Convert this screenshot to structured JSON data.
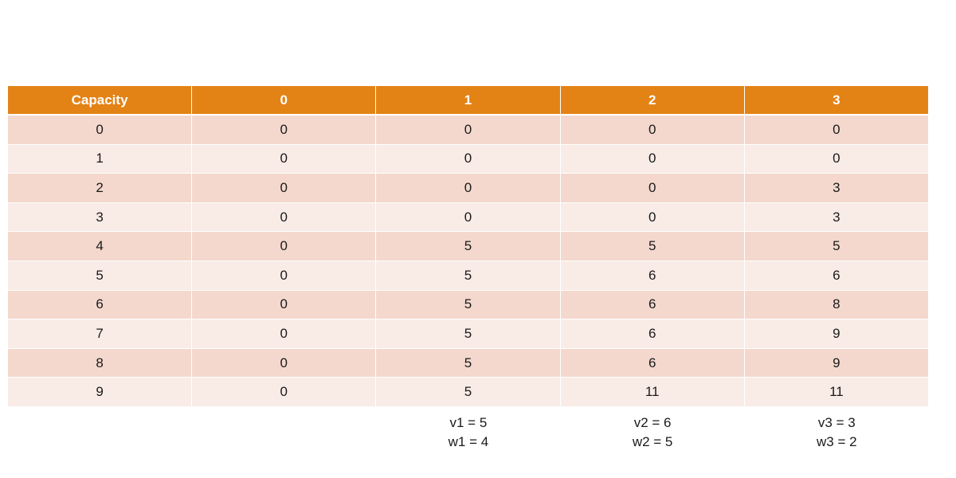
{
  "table": {
    "header": [
      "Capacity",
      0,
      1,
      2,
      3
    ],
    "rows": [
      [
        0,
        0,
        0,
        0,
        0
      ],
      [
        1,
        0,
        0,
        0,
        0
      ],
      [
        2,
        0,
        0,
        0,
        3
      ],
      [
        3,
        0,
        0,
        0,
        3
      ],
      [
        4,
        0,
        5,
        5,
        5
      ],
      [
        5,
        0,
        5,
        6,
        6
      ],
      [
        6,
        0,
        5,
        6,
        8
      ],
      [
        7,
        0,
        5,
        6,
        9
      ],
      [
        8,
        0,
        5,
        6,
        9
      ],
      [
        9,
        0,
        5,
        11,
        11
      ]
    ]
  },
  "notes": [
    [
      "v1 = 5",
      "w1 = 4"
    ],
    [
      "v2 = 6",
      "w2 = 5"
    ],
    [
      "v3 = 3",
      "w3 = 2"
    ]
  ]
}
